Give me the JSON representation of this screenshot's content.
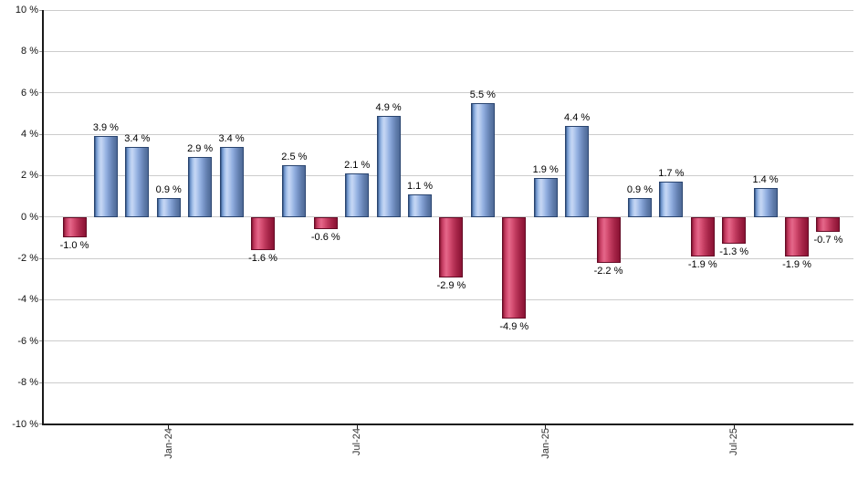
{
  "chart_data": {
    "type": "bar",
    "title": "",
    "xlabel": "",
    "ylabel": "",
    "unit": "%",
    "ylim": [
      -10,
      10
    ],
    "grid": true,
    "legend": "none",
    "y_ticks": [
      10,
      8,
      6,
      4,
      2,
      0,
      -2,
      -4,
      -6,
      -8,
      -10
    ],
    "y_tick_labels": [
      "10 %",
      "8 %",
      "6 %",
      "4 %",
      "2 %",
      "0 %",
      "-2 %",
      "-4 %",
      "-6 %",
      "-8 %",
      "-10 %"
    ],
    "values": [
      -1.0,
      3.9,
      3.4,
      0.9,
      2.9,
      3.4,
      -1.6,
      2.5,
      -0.6,
      2.1,
      4.9,
      1.1,
      -2.9,
      5.5,
      -4.9,
      1.9,
      4.4,
      -2.2,
      0.9,
      1.7,
      -1.9,
      -1.3,
      1.4,
      -1.9,
      -0.7
    ],
    "bar_labels": [
      "-1.0 %",
      "3.9 %",
      "3.4 %",
      "0.9 %",
      "2.9 %",
      "3.4 %",
      "-1.6 %",
      "2.5 %",
      "-0.6 %",
      "2.1 %",
      "4.9 %",
      "1.1 %",
      "-2.9 %",
      "5.5 %",
      "-4.9 %",
      "1.9 %",
      "4.4 %",
      "-2.2 %",
      "0.9 %",
      "1.7 %",
      "-1.9 %",
      "-1.3 %",
      "1.4 %",
      "-1.9 %",
      "-0.7 %"
    ],
    "x_ticks": [
      {
        "index": 3,
        "label": "Jan-24"
      },
      {
        "index": 9,
        "label": "Jul-24"
      },
      {
        "index": 15,
        "label": "Jan-25"
      },
      {
        "index": 21,
        "label": "Jul-25"
      }
    ],
    "colors": {
      "positive_bar": "#9db8e6",
      "positive_border": "#2a4570",
      "negative_bar": "#d34e6f",
      "negative_border": "#650b26",
      "gridline": "#cccccc",
      "axis": "#1a1a1a",
      "label_text": "#000000"
    }
  }
}
